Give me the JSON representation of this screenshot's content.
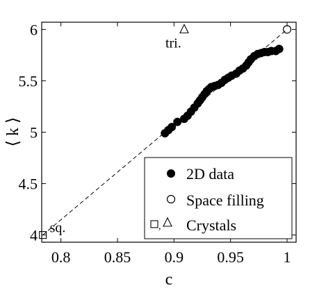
{
  "chart_data": {
    "type": "scatter",
    "xlabel": "c",
    "ylabel": "⟨ k ⟩",
    "xlim": [
      0.783,
      1.008
    ],
    "ylim": [
      3.93,
      6.07
    ],
    "xticks": [
      0.8,
      0.85,
      0.9,
      0.95,
      1
    ],
    "xtick_labels": [
      "0.8",
      "0.85",
      "0.9",
      "0.95",
      "1"
    ],
    "yticks": [
      4,
      4.5,
      5,
      5.5,
      6
    ],
    "ytick_labels": [
      "4",
      "4.5",
      "5",
      "5.5",
      "6"
    ],
    "grid": false,
    "legend_position": "bottom-right",
    "series": [
      {
        "name": "2D data",
        "marker": "filled-circle",
        "color": "#000000",
        "x": [
          0.892,
          0.895,
          0.898,
          0.903,
          0.909,
          0.912,
          0.915,
          0.918,
          0.921,
          0.923,
          0.925,
          0.927,
          0.929,
          0.931,
          0.933,
          0.936,
          0.939,
          0.942,
          0.945,
          0.948,
          0.951,
          0.955,
          0.958,
          0.961,
          0.964,
          0.966,
          0.968,
          0.971,
          0.974,
          0.977,
          0.98,
          0.983,
          0.986,
          0.99,
          0.993
        ],
        "y": [
          4.99,
          5.02,
          5.05,
          5.1,
          5.13,
          5.16,
          5.2,
          5.24,
          5.28,
          5.31,
          5.34,
          5.37,
          5.4,
          5.42,
          5.44,
          5.45,
          5.46,
          5.48,
          5.51,
          5.53,
          5.55,
          5.57,
          5.6,
          5.62,
          5.65,
          5.68,
          5.71,
          5.74,
          5.76,
          5.77,
          5.78,
          5.78,
          5.79,
          5.79,
          5.81
        ]
      },
      {
        "name": "Space filling",
        "marker": "open-circle",
        "color": "#000000",
        "x": [
          1.0
        ],
        "y": [
          6.0
        ]
      },
      {
        "name": "Crystals",
        "marker": "open-square-triangle",
        "color": "#000000",
        "points": [
          {
            "x": 0.784,
            "y": 4.0,
            "marker": "open-square"
          },
          {
            "x": 0.909,
            "y": 6.0,
            "marker": "open-triangle"
          }
        ]
      }
    ],
    "reference_line": {
      "style": "dashed",
      "from": [
        0.784,
        4.0
      ],
      "to": [
        1.0,
        6.0
      ]
    },
    "annotations": [
      {
        "text": "sq.",
        "x": 0.784,
        "y": 4.0
      },
      {
        "text": "tri.",
        "x": 0.909,
        "y": 6.0
      }
    ],
    "legend": {
      "entries": [
        {
          "marker": "filled-circle",
          "label": "2D data"
        },
        {
          "marker": "open-circle",
          "label": "Space filling"
        },
        {
          "marker": "open-square-triangle",
          "label": "Crystals"
        }
      ]
    }
  }
}
